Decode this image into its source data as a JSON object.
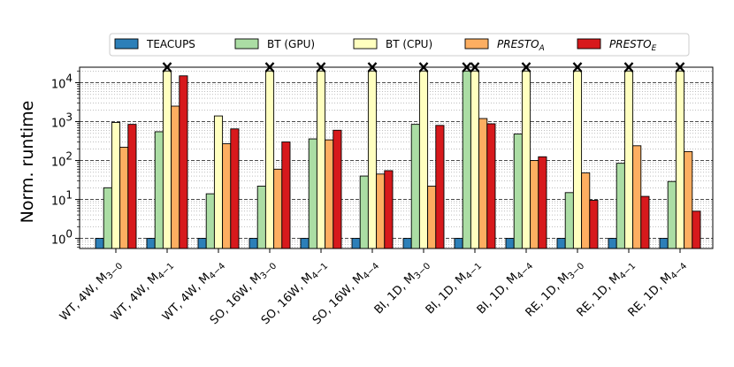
{
  "chart_data": {
    "type": "bar",
    "scale": "log",
    "ylabel": "Norm. runtime",
    "ylim": [
      0.55,
      25000
    ],
    "yticks": [
      {
        "base": "10",
        "exp": "0",
        "value": 1
      },
      {
        "base": "10",
        "exp": "1",
        "value": 10
      },
      {
        "base": "10",
        "exp": "2",
        "value": 100
      },
      {
        "base": "10",
        "exp": "3",
        "value": 1000
      },
      {
        "base": "10",
        "exp": "4",
        "value": 10000
      }
    ],
    "grid": "y major dashed, minor dotted",
    "legend_position": "top",
    "timeout_marker": "X",
    "categories": [
      {
        "main": "WT, 4W, M",
        "sub": "3−0"
      },
      {
        "main": "WT, 4W, M",
        "sub": "4−1"
      },
      {
        "main": "WT, 4W, M",
        "sub": "4−4"
      },
      {
        "main": "SO, 16W, M",
        "sub": "3−0"
      },
      {
        "main": "SO, 16W, M",
        "sub": "4−1"
      },
      {
        "main": "SO, 16W, M",
        "sub": "4−4"
      },
      {
        "main": "BI, 1D, M",
        "sub": "3−0"
      },
      {
        "main": "BI, 1D, M",
        "sub": "4−1"
      },
      {
        "main": "BI, 1D, M",
        "sub": "4−4"
      },
      {
        "main": "RE, 1D, M",
        "sub": "3−0"
      },
      {
        "main": "RE, 1D, M",
        "sub": "4−1"
      },
      {
        "main": "RE, 1D, M",
        "sub": "4−4"
      }
    ],
    "series": [
      {
        "name": "TEACUPS",
        "italic": false,
        "base": "TEACUPS",
        "sub": "",
        "color": "#2c7fb8",
        "values": [
          1,
          1,
          1,
          1,
          1,
          1,
          1,
          1,
          1,
          1,
          1,
          1
        ],
        "timeout": [
          false,
          false,
          false,
          false,
          false,
          false,
          false,
          false,
          false,
          false,
          false,
          false
        ]
      },
      {
        "name": "BT (GPU)",
        "italic": false,
        "base": "BT (GPU)",
        "sub": "",
        "color": "#abdda4",
        "values": [
          20,
          550,
          14,
          22,
          360,
          40,
          850,
          20000,
          480,
          15,
          85,
          29
        ],
        "timeout": [
          false,
          false,
          false,
          false,
          false,
          false,
          false,
          true,
          false,
          false,
          false,
          false
        ]
      },
      {
        "name": "BT (CPU)",
        "italic": false,
        "base": "BT (CPU)",
        "sub": "",
        "color": "#ffffbf",
        "values": [
          950,
          20000,
          1400,
          20000,
          20000,
          20000,
          20000,
          20000,
          20000,
          20000,
          20000,
          20000
        ],
        "timeout": [
          false,
          true,
          false,
          true,
          true,
          true,
          true,
          true,
          true,
          true,
          true,
          true
        ]
      },
      {
        "name": "PRESTO_A",
        "italic": true,
        "base": "PRESTO",
        "sub": "A",
        "color": "#fdae61",
        "values": [
          220,
          2500,
          270,
          60,
          340,
          45,
          22,
          1200,
          100,
          48,
          240,
          170
        ],
        "timeout": [
          false,
          false,
          false,
          false,
          false,
          false,
          false,
          false,
          false,
          false,
          false,
          false
        ]
      },
      {
        "name": "PRESTO_E",
        "italic": true,
        "base": "PRESTO",
        "sub": "E",
        "color": "#d7191c",
        "values": [
          850,
          15000,
          650,
          300,
          600,
          55,
          800,
          880,
          125,
          9.5,
          12,
          5
        ],
        "timeout": [
          false,
          false,
          false,
          false,
          false,
          false,
          false,
          false,
          false,
          false,
          false,
          false
        ]
      }
    ]
  }
}
